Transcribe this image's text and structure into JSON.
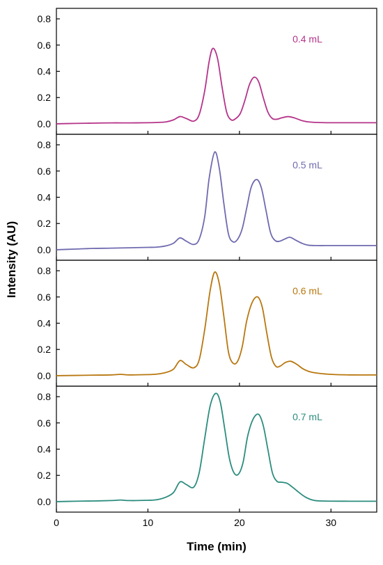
{
  "chart_data": {
    "type": "line",
    "xlabel": "Time (min)",
    "ylabel": "Intensity (AU)",
    "xlim": [
      0,
      35
    ],
    "ylim": [
      -0.08,
      0.88
    ],
    "x_ticks": [
      0,
      10,
      20,
      30
    ],
    "x_tick_labels": [
      "0",
      "10",
      "20",
      "30"
    ],
    "y_ticks": [
      0.0,
      0.2,
      0.4,
      0.6,
      0.8
    ],
    "y_tick_labels": [
      "0.0",
      "0.2",
      "0.4",
      "0.6",
      "0.8"
    ],
    "grid": false,
    "layout": "4 stacked panels sharing x-axis",
    "series": [
      {
        "name": "0.4 mL",
        "color": "#b5338a",
        "x": [
          0,
          2,
          4,
          6,
          8,
          10,
          11,
          12,
          12.8,
          13.5,
          14.2,
          15,
          15.6,
          16.2,
          16.7,
          17.1,
          17.6,
          18.1,
          18.6,
          19.1,
          19.6,
          20.1,
          20.6,
          21.1,
          21.6,
          22.1,
          22.6,
          23.1,
          23.6,
          24.1,
          24.6,
          25.3,
          26,
          26.8,
          27.5,
          28.5,
          30,
          32,
          35
        ],
        "values": [
          0.0,
          0.003,
          0.005,
          0.007,
          0.007,
          0.008,
          0.01,
          0.015,
          0.03,
          0.055,
          0.04,
          0.02,
          0.07,
          0.25,
          0.48,
          0.575,
          0.5,
          0.28,
          0.09,
          0.03,
          0.04,
          0.08,
          0.18,
          0.3,
          0.355,
          0.32,
          0.2,
          0.09,
          0.04,
          0.035,
          0.045,
          0.055,
          0.045,
          0.025,
          0.015,
          0.01,
          0.008,
          0.008,
          0.008
        ]
      },
      {
        "name": "0.5 mL",
        "color": "#6f6aaf",
        "x": [
          0,
          2,
          4,
          6,
          8,
          10,
          11,
          12,
          12.8,
          13.5,
          14.2,
          15,
          15.6,
          16.2,
          16.7,
          17.3,
          17.8,
          18.3,
          18.8,
          19.3,
          19.8,
          20.3,
          20.8,
          21.3,
          21.9,
          22.4,
          22.9,
          23.4,
          23.9,
          24.4,
          24.9,
          25.5,
          26.1,
          26.8,
          27.5,
          28.5,
          30,
          32,
          35
        ],
        "values": [
          0.0,
          0.005,
          0.01,
          0.012,
          0.015,
          0.018,
          0.02,
          0.03,
          0.05,
          0.09,
          0.065,
          0.04,
          0.08,
          0.25,
          0.55,
          0.745,
          0.62,
          0.35,
          0.12,
          0.06,
          0.08,
          0.16,
          0.32,
          0.48,
          0.535,
          0.47,
          0.3,
          0.13,
          0.07,
          0.065,
          0.08,
          0.095,
          0.075,
          0.05,
          0.035,
          0.032,
          0.032,
          0.032,
          0.032
        ]
      },
      {
        "name": "0.6 mL",
        "color": "#b8770f",
        "x": [
          0,
          2,
          4,
          6,
          7,
          8,
          10,
          11,
          12,
          12.8,
          13.5,
          14.2,
          15,
          15.6,
          16.2,
          16.8,
          17.3,
          17.8,
          18.3,
          18.8,
          19.3,
          19.8,
          20.3,
          20.8,
          21.4,
          22,
          22.5,
          23,
          23.5,
          24,
          24.5,
          25,
          25.6,
          26.3,
          27,
          28,
          30,
          32,
          35
        ],
        "values": [
          0.0,
          0.002,
          0.004,
          0.006,
          0.01,
          0.006,
          0.008,
          0.012,
          0.025,
          0.05,
          0.115,
          0.085,
          0.06,
          0.12,
          0.35,
          0.65,
          0.79,
          0.7,
          0.45,
          0.18,
          0.095,
          0.11,
          0.22,
          0.42,
          0.56,
          0.6,
          0.52,
          0.32,
          0.14,
          0.07,
          0.075,
          0.1,
          0.11,
          0.085,
          0.05,
          0.025,
          0.01,
          0.006,
          0.006
        ]
      },
      {
        "name": "0.7 mL",
        "color": "#2b8c7e",
        "x": [
          0,
          2,
          4,
          6,
          7,
          8,
          10,
          11,
          12,
          12.8,
          13.5,
          14.2,
          15,
          15.6,
          16.2,
          16.8,
          17.4,
          17.9,
          18.4,
          18.9,
          19.4,
          19.9,
          20.4,
          20.9,
          21.5,
          22.1,
          22.6,
          23.1,
          23.6,
          24.1,
          24.6,
          25.2,
          25.8,
          26.5,
          27.2,
          28,
          29,
          32,
          35
        ],
        "values": [
          0.0,
          0.003,
          0.005,
          0.008,
          0.012,
          0.008,
          0.01,
          0.015,
          0.035,
          0.07,
          0.15,
          0.13,
          0.11,
          0.22,
          0.48,
          0.73,
          0.825,
          0.76,
          0.55,
          0.33,
          0.22,
          0.21,
          0.3,
          0.5,
          0.63,
          0.665,
          0.58,
          0.4,
          0.22,
          0.155,
          0.148,
          0.14,
          0.11,
          0.07,
          0.035,
          0.012,
          0.005,
          0.003,
          0.003
        ]
      }
    ]
  }
}
